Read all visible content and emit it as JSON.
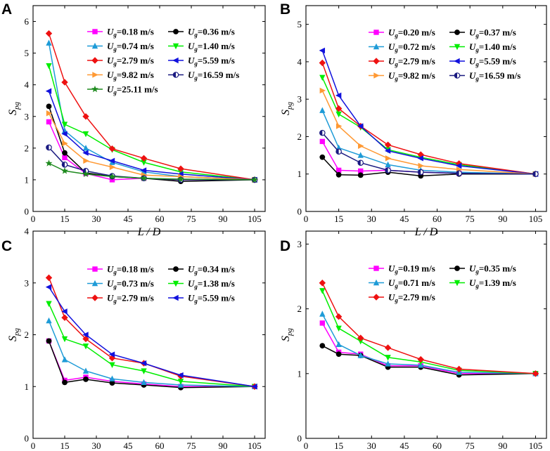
{
  "figure": {
    "x_label": "L / D",
    "y_label_main": "S",
    "y_label_sub": "pg"
  },
  "colors": {
    "magenta": "#ff00ff",
    "black": "#000000",
    "cyan": "#1e9bd7",
    "green": "#00ee00",
    "red": "#ee1111",
    "blue": "#1111dd",
    "orange": "#ff9933",
    "navy": "#1a1a80",
    "darkgreen": "#1e8a1e"
  },
  "chart_data": [
    {
      "panel": "A",
      "type": "line",
      "xlabel": "L / D",
      "ylabel": "Spg",
      "xlim": [
        0,
        110
      ],
      "xticks": [
        0,
        15,
        30,
        45,
        60,
        75,
        90,
        105
      ],
      "ylim": [
        0,
        6.5
      ],
      "yticks": [
        0,
        1,
        2,
        3,
        4,
        5,
        6
      ],
      "x": [
        7.5,
        15,
        25,
        37.5,
        52.5,
        70,
        105
      ],
      "series": [
        {
          "name": "Ug=0.18 m/s",
          "prefix": "U",
          "sub": "g",
          "value": "=0.18 m/s",
          "color": "magenta",
          "marker": "square",
          "values": [
            2.83,
            1.7,
            1.2,
            1.0,
            1.05,
            1.0,
            1.0
          ]
        },
        {
          "name": "Ug=0.36 m/s",
          "prefix": "U",
          "sub": "g",
          "value": "=0.36 m/s",
          "color": "black",
          "marker": "circle",
          "values": [
            3.32,
            1.85,
            1.22,
            1.1,
            1.05,
            0.95,
            1.0
          ]
        },
        {
          "name": "Ug=0.74 m/s",
          "prefix": "U",
          "sub": "g",
          "value": "=0.74 m/s",
          "color": "cyan",
          "marker": "triangle-up",
          "values": [
            5.32,
            2.55,
            2.0,
            1.55,
            1.25,
            1.1,
            1.0
          ]
        },
        {
          "name": "Ug=1.40 m/s",
          "prefix": "U",
          "sub": "g",
          "value": "=1.40 m/s",
          "color": "green",
          "marker": "triangle-down",
          "values": [
            4.6,
            2.75,
            2.45,
            1.95,
            1.55,
            1.25,
            1.0
          ]
        },
        {
          "name": "Ug=2.79 m/s",
          "prefix": "U",
          "sub": "g",
          "value": "=2.79 m/s",
          "color": "red",
          "marker": "diamond",
          "values": [
            5.62,
            4.08,
            3.0,
            1.98,
            1.68,
            1.35,
            1.0
          ]
        },
        {
          "name": "Ug=5.59 m/s",
          "prefix": "U",
          "sub": "g",
          "value": "=5.59 m/s",
          "color": "blue",
          "marker": "triangle-left",
          "values": [
            3.8,
            2.45,
            1.85,
            1.6,
            1.3,
            1.18,
            1.0
          ]
        },
        {
          "name": "Ug=9.82 m/s",
          "prefix": "U",
          "sub": "g",
          "value": "=9.82 m/s",
          "color": "orange",
          "marker": "triangle-right",
          "values": [
            3.1,
            2.15,
            1.6,
            1.4,
            1.15,
            1.1,
            1.0
          ]
        },
        {
          "name": "Ug=16.59 m/s",
          "prefix": "U",
          "sub": "g",
          "value": "=16.59 m/s",
          "color": "navy",
          "marker": "half-circle",
          "values": [
            2.02,
            1.48,
            1.28,
            1.12,
            1.05,
            1.0,
            1.0
          ]
        },
        {
          "name": "Ug=25.11 m/s",
          "prefix": "U",
          "sub": "g",
          "value": "=25.11 m/s",
          "color": "darkgreen",
          "marker": "star",
          "values": [
            1.52,
            1.28,
            1.18,
            1.1,
            1.05,
            1.02,
            1.0
          ]
        }
      ]
    },
    {
      "panel": "B",
      "type": "line",
      "xlabel": "L / D",
      "ylabel": "Spg",
      "xlim": [
        0,
        110
      ],
      "xticks": [
        0,
        15,
        30,
        45,
        60,
        75,
        90,
        105
      ],
      "ylim": [
        0,
        5.5
      ],
      "yticks": [
        0,
        1,
        2,
        3,
        4,
        5
      ],
      "x": [
        7.5,
        15,
        25,
        37.5,
        52.5,
        70,
        105
      ],
      "series": [
        {
          "name": "Ug=0.20 m/s",
          "prefix": "U",
          "sub": "g",
          "value": "=0.20 m/s",
          "color": "magenta",
          "marker": "square",
          "values": [
            1.87,
            1.1,
            1.08,
            1.1,
            1.05,
            1.02,
            1.0
          ]
        },
        {
          "name": "Ug=0.37 m/s",
          "prefix": "U",
          "sub": "g",
          "value": "=0.37 m/s",
          "color": "black",
          "marker": "circle",
          "values": [
            1.45,
            0.98,
            0.97,
            1.05,
            0.95,
            1.0,
            1.0
          ]
        },
        {
          "name": "Ug=0.72 m/s",
          "prefix": "U",
          "sub": "g",
          "value": "=0.72 m/s",
          "color": "cyan",
          "marker": "triangle-up",
          "values": [
            2.7,
            1.7,
            1.5,
            1.25,
            1.1,
            1.05,
            1.0
          ]
        },
        {
          "name": "Ug=1.40 m/s",
          "prefix": "U",
          "sub": "g",
          "value": "=1.40 m/s",
          "color": "green",
          "marker": "triangle-down",
          "values": [
            3.58,
            2.6,
            2.25,
            1.65,
            1.45,
            1.25,
            1.0
          ]
        },
        {
          "name": "Ug=2.79 m/s",
          "prefix": "U",
          "sub": "g",
          "value": "=2.79 m/s",
          "color": "red",
          "marker": "diamond",
          "values": [
            3.97,
            2.75,
            2.28,
            1.78,
            1.52,
            1.28,
            1.0
          ]
        },
        {
          "name": "Ug=5.59 m/s",
          "prefix": "U",
          "sub": "g",
          "value": "=5.59 m/s",
          "color": "blue",
          "marker": "triangle-left",
          "values": [
            4.3,
            3.1,
            2.28,
            1.62,
            1.42,
            1.22,
            1.0
          ]
        },
        {
          "name": "Ug=9.82 m/s",
          "prefix": "U",
          "sub": "g",
          "value": "=9.82 m/s",
          "color": "orange",
          "marker": "triangle-right",
          "values": [
            3.23,
            2.28,
            1.75,
            1.42,
            1.22,
            1.12,
            1.0
          ]
        },
        {
          "name": "Ug=16.59 m/s",
          "prefix": "U",
          "sub": "g",
          "value": "=16.59 m/s",
          "color": "navy",
          "marker": "half-circle",
          "values": [
            2.1,
            1.6,
            1.3,
            1.1,
            1.05,
            1.02,
            1.0
          ]
        }
      ]
    },
    {
      "panel": "C",
      "type": "line",
      "xlabel": "L / D",
      "ylabel": "Spg",
      "xlim": [
        0,
        110
      ],
      "xticks": [
        0,
        15,
        30,
        45,
        60,
        75,
        90,
        105
      ],
      "ylim": [
        0,
        4
      ],
      "yticks": [
        0,
        1,
        2,
        3,
        4
      ],
      "x": [
        7.5,
        15,
        25,
        37.5,
        52.5,
        70,
        105
      ],
      "series": [
        {
          "name": "Ug=0.18 m/s",
          "prefix": "U",
          "sub": "g",
          "value": "=0.18 m/s",
          "color": "magenta",
          "marker": "square",
          "values": [
            1.88,
            1.12,
            1.18,
            1.1,
            1.05,
            1.0,
            1.0
          ]
        },
        {
          "name": "Ug=0.34 m/s",
          "prefix": "U",
          "sub": "g",
          "value": "=0.34 m/s",
          "color": "black",
          "marker": "circle",
          "values": [
            1.88,
            1.08,
            1.14,
            1.07,
            1.03,
            0.98,
            1.0
          ]
        },
        {
          "name": "Ug=0.73 m/s",
          "prefix": "U",
          "sub": "g",
          "value": "=0.73 m/s",
          "color": "cyan",
          "marker": "triangle-up",
          "values": [
            2.27,
            1.52,
            1.3,
            1.15,
            1.08,
            1.03,
            1.0
          ]
        },
        {
          "name": "Ug=1.38 m/s",
          "prefix": "U",
          "sub": "g",
          "value": "=1.38 m/s",
          "color": "green",
          "marker": "triangle-down",
          "values": [
            2.6,
            1.92,
            1.78,
            1.42,
            1.3,
            1.1,
            1.0
          ]
        },
        {
          "name": "Ug=2.79 m/s",
          "prefix": "U",
          "sub": "g",
          "value": "=2.79 m/s",
          "color": "red",
          "marker": "diamond",
          "values": [
            3.1,
            2.33,
            1.92,
            1.55,
            1.45,
            1.2,
            1.0
          ]
        },
        {
          "name": "Ug=5.59 m/s",
          "prefix": "U",
          "sub": "g",
          "value": "=5.59 m/s",
          "color": "blue",
          "marker": "triangle-left",
          "values": [
            2.92,
            2.45,
            2.0,
            1.62,
            1.45,
            1.22,
            1.0
          ]
        }
      ]
    },
    {
      "panel": "D",
      "type": "line",
      "xlabel": "L / D",
      "ylabel": "Spg",
      "xlim": [
        0,
        110
      ],
      "xticks": [
        0,
        15,
        30,
        45,
        60,
        75,
        90,
        105
      ],
      "ylim": [
        0,
        3.2
      ],
      "yticks": [
        0,
        1,
        2,
        3
      ],
      "x": [
        7.5,
        15,
        25,
        37.5,
        52.5,
        70,
        105
      ],
      "series": [
        {
          "name": "Ug=0.19 m/s",
          "prefix": "U",
          "sub": "g",
          "value": "=0.19 m/s",
          "color": "magenta",
          "marker": "square",
          "values": [
            1.78,
            1.33,
            1.3,
            1.12,
            1.12,
            1.0,
            1.0
          ]
        },
        {
          "name": "Ug=0.35 m/s",
          "prefix": "U",
          "sub": "g",
          "value": "=0.35 m/s",
          "color": "black",
          "marker": "circle",
          "values": [
            1.43,
            1.3,
            1.28,
            1.1,
            1.1,
            0.98,
            1.0
          ]
        },
        {
          "name": "Ug=0.71 m/s",
          "prefix": "U",
          "sub": "g",
          "value": "=0.71 m/s",
          "color": "cyan",
          "marker": "triangle-up",
          "values": [
            1.92,
            1.45,
            1.28,
            1.15,
            1.13,
            1.02,
            1.0
          ]
        },
        {
          "name": "Ug=1.39 m/s",
          "prefix": "U",
          "sub": "g",
          "value": "=1.39 m/s",
          "color": "green",
          "marker": "triangle-down",
          "values": [
            2.28,
            1.7,
            1.5,
            1.25,
            1.18,
            1.05,
            1.0
          ]
        },
        {
          "name": "Ug=2.79 m/s",
          "prefix": "U",
          "sub": "g",
          "value": "=2.79 m/s",
          "color": "red",
          "marker": "diamond",
          "values": [
            2.4,
            1.88,
            1.55,
            1.4,
            1.22,
            1.07,
            1.0
          ]
        }
      ]
    }
  ]
}
